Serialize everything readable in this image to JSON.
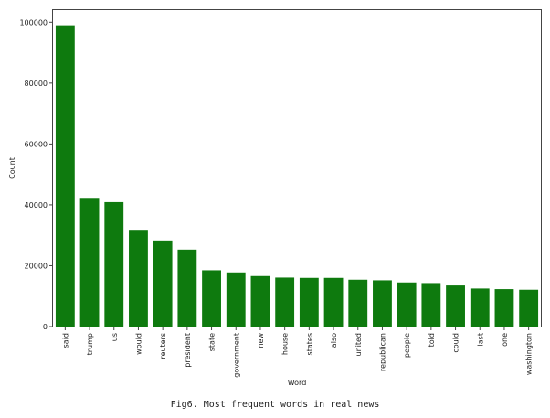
{
  "caption": "Fig6. Most frequent words in real news",
  "chart_data": {
    "type": "bar",
    "xlabel": "Word",
    "ylabel": "Count",
    "ylim": [
      0,
      104000
    ],
    "yticks": [
      0,
      20000,
      40000,
      60000,
      80000,
      100000
    ],
    "grid": false,
    "bar_color": "#0e7a0e",
    "categories": [
      "said",
      "trump",
      "us",
      "would",
      "reuters",
      "president",
      "state",
      "government",
      "new",
      "house",
      "states",
      "also",
      "united",
      "republican",
      "people",
      "told",
      "could",
      "last",
      "one",
      "washington"
    ],
    "values": [
      99000,
      42000,
      40900,
      31500,
      28300,
      25300,
      18500,
      17800,
      16600,
      16100,
      16000,
      16000,
      15400,
      15200,
      14500,
      14300,
      13500,
      12500,
      12300,
      12100
    ]
  }
}
